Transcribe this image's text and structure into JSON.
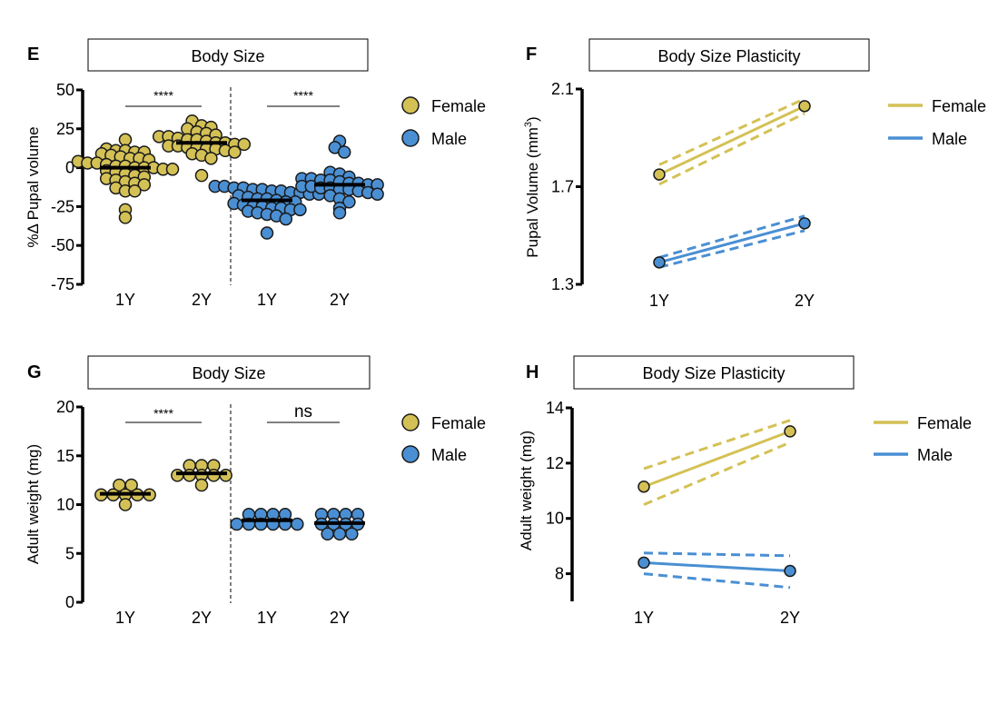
{
  "colors": {
    "female": "#d4c155",
    "male": "#4a8fd3",
    "outline": "#1a1a1a",
    "median": "#000000"
  },
  "chart_data": [
    {
      "panel": "E",
      "type": "scatter",
      "title": "Body Size",
      "ylabel": "%Δ Pupal volume",
      "xlabel": "",
      "ylim": [
        -75,
        50
      ],
      "yticks": [
        50,
        25,
        0,
        -25,
        -50,
        -75
      ],
      "ytick_labels": [
        "50",
        "25",
        "0",
        "-25",
        "-50",
        "-75"
      ],
      "categories": [
        "1Y",
        "2Y",
        "1Y",
        "2Y"
      ],
      "groups": [
        "Female",
        "Female",
        "Male",
        "Male"
      ],
      "medians": [
        0,
        16,
        -21,
        -11
      ],
      "significance": [
        {
          "between": [
            0,
            1
          ],
          "label": "****"
        },
        {
          "between": [
            2,
            3
          ],
          "label": "****"
        }
      ],
      "series": [
        {
          "name": "Female 1Y",
          "values": [
            18,
            12,
            11,
            11,
            10,
            10,
            9,
            8,
            7,
            6,
            6,
            5,
            4,
            3,
            3,
            2,
            1,
            1,
            0,
            0,
            0,
            -1,
            -1,
            -2,
            -3,
            -4,
            -5,
            -6,
            -7,
            -8,
            -9,
            -10,
            -11,
            -13,
            -15,
            -15,
            -27,
            -32
          ]
        },
        {
          "name": "Female 2Y",
          "values": [
            30,
            27,
            26,
            25,
            23,
            22,
            21,
            20,
            20,
            19,
            18,
            18,
            17,
            16,
            16,
            15,
            15,
            14,
            14,
            13,
            13,
            12,
            12,
            11,
            10,
            9,
            8,
            6,
            -5
          ]
        },
        {
          "name": "Male 1Y",
          "values": [
            -12,
            -12,
            -13,
            -13,
            -14,
            -14,
            -15,
            -15,
            -16,
            -16,
            -17,
            -17,
            -18,
            -19,
            -20,
            -20,
            -21,
            -22,
            -22,
            -23,
            -24,
            -25,
            -25,
            -26,
            -26,
            -27,
            -27,
            -28,
            -29,
            -30,
            -31,
            -33,
            -42
          ]
        },
        {
          "name": "Male 2Y",
          "values": [
            17,
            13,
            10,
            -3,
            -4,
            -6,
            -7,
            -7,
            -8,
            -8,
            -9,
            -10,
            -10,
            -11,
            -11,
            -12,
            -12,
            -13,
            -13,
            -14,
            -14,
            -15,
            -16,
            -17,
            -18,
            -20,
            -22,
            -26,
            -29
          ]
        }
      ],
      "legend": {
        "entries": [
          "Female",
          "Male"
        ],
        "placement": "right",
        "marker": "circle"
      }
    },
    {
      "panel": "F",
      "type": "line",
      "title": "Body Size Plasticity",
      "ylabel": "Pupal Volume (mm³)",
      "ylabel_base": "Pupal Volume (mm",
      "ylabel_sup": "3",
      "ylabel_end": ")",
      "ylim": [
        1.3,
        2.1
      ],
      "yticks": [
        2.1,
        1.7,
        1.3
      ],
      "ytick_labels": [
        "2.1",
        "1.7",
        "1.3"
      ],
      "x": [
        "1Y",
        "2Y"
      ],
      "series": [
        {
          "name": "Female",
          "values": [
            1.75,
            2.03
          ],
          "ci_upper": [
            1.79,
            2.06
          ],
          "ci_lower": [
            1.71,
            2.0
          ]
        },
        {
          "name": "Male",
          "values": [
            1.39,
            1.55
          ],
          "ci_upper": [
            1.41,
            1.58
          ],
          "ci_lower": [
            1.37,
            1.52
          ]
        }
      ],
      "legend": {
        "entries": [
          "Female",
          "Male"
        ],
        "placement": "right",
        "marker": "line"
      }
    },
    {
      "panel": "G",
      "type": "scatter",
      "title": "Body Size",
      "ylabel": "Adult weight (mg)",
      "xlabel": "",
      "ylim": [
        0,
        20
      ],
      "yticks": [
        20,
        15,
        10,
        5,
        0
      ],
      "ytick_labels": [
        "20",
        "15",
        "10",
        "5",
        "0"
      ],
      "categories": [
        "1Y",
        "2Y",
        "1Y",
        "2Y"
      ],
      "groups": [
        "Female",
        "Female",
        "Male",
        "Male"
      ],
      "medians": [
        11.1,
        13.2,
        8.4,
        8.1
      ],
      "significance": [
        {
          "between": [
            0,
            1
          ],
          "label": "****"
        },
        {
          "between": [
            2,
            3
          ],
          "label": "ns"
        }
      ],
      "series": [
        {
          "name": "Female 1Y",
          "values": [
            12,
            12,
            11,
            11,
            11,
            11,
            11,
            10
          ]
        },
        {
          "name": "Female 2Y",
          "values": [
            14,
            14,
            14,
            13,
            13,
            13,
            13,
            13,
            12
          ]
        },
        {
          "name": "Male 1Y",
          "values": [
            9,
            9,
            9,
            9,
            8,
            8,
            8,
            8,
            8,
            8
          ]
        },
        {
          "name": "Male 2Y",
          "values": [
            9,
            9,
            9,
            9,
            8,
            8,
            8,
            8,
            7,
            7,
            7
          ]
        }
      ],
      "legend": {
        "entries": [
          "Female",
          "Male"
        ],
        "placement": "right",
        "marker": "circle"
      }
    },
    {
      "panel": "H",
      "type": "line",
      "title": "Body Size Plasticity",
      "ylabel": "Adult weight (mg)",
      "ylim": [
        7,
        14
      ],
      "yticks": [
        14,
        12,
        10,
        8
      ],
      "ytick_labels": [
        "14",
        "12",
        "10",
        "8"
      ],
      "x": [
        "1Y",
        "2Y"
      ],
      "series": [
        {
          "name": "Female",
          "values": [
            11.15,
            13.15
          ],
          "ci_upper": [
            11.8,
            13.55
          ],
          "ci_lower": [
            10.5,
            12.75
          ]
        },
        {
          "name": "Male",
          "values": [
            8.4,
            8.1
          ],
          "ci_upper": [
            8.75,
            8.65
          ],
          "ci_lower": [
            8.0,
            7.5
          ]
        }
      ],
      "legend": {
        "entries": [
          "Female",
          "Male"
        ],
        "placement": "right",
        "marker": "line"
      }
    }
  ]
}
